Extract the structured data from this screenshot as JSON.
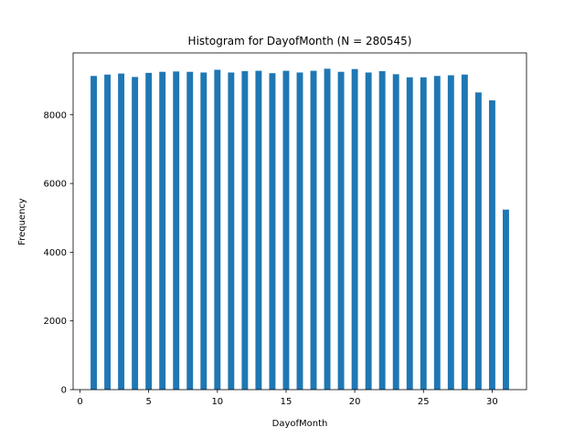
{
  "chart_data": {
    "type": "bar",
    "title": "Histogram for DayofMonth (N = 280545)",
    "xlabel": "DayofMonth",
    "ylabel": "Frequency",
    "xlim": [
      -0.5,
      32.5
    ],
    "ylim": [
      0,
      9800
    ],
    "xticks": [
      0,
      5,
      10,
      15,
      20,
      25,
      30
    ],
    "yticks": [
      0,
      2000,
      4000,
      6000,
      8000
    ],
    "bar_color": "#1f77b4",
    "grid": false,
    "legend": "none",
    "x": [
      1,
      2,
      3,
      4,
      5,
      6,
      7,
      8,
      9,
      10,
      11,
      12,
      13,
      14,
      15,
      16,
      17,
      18,
      19,
      20,
      21,
      22,
      23,
      24,
      25,
      26,
      27,
      28,
      29,
      30,
      31
    ],
    "values": [
      9130,
      9170,
      9200,
      9100,
      9220,
      9250,
      9260,
      9250,
      9230,
      9310,
      9230,
      9270,
      9280,
      9210,
      9280,
      9230,
      9280,
      9340,
      9250,
      9330,
      9230,
      9270,
      9180,
      9090,
      9090,
      9130,
      9150,
      9170,
      8650,
      8420,
      5240
    ]
  }
}
